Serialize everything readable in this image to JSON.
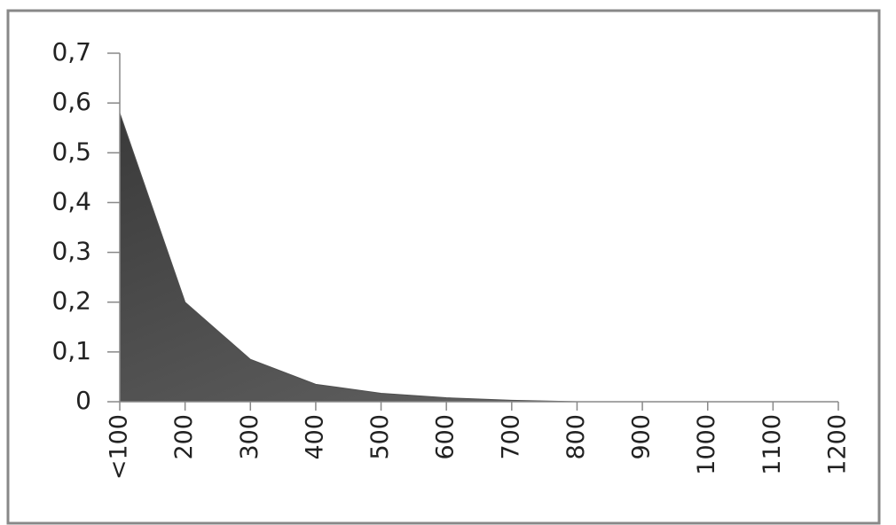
{
  "chart_data": {
    "type": "area",
    "categories": [
      "<100",
      "200",
      "300",
      "400",
      "500",
      "600",
      "700",
      "800",
      "900",
      "1000",
      "1100",
      "1200"
    ],
    "values": [
      0.58,
      0.2,
      0.085,
      0.035,
      0.017,
      0.008,
      0.003,
      0,
      0,
      0,
      0,
      0
    ],
    "color": "#505050",
    "ylim": [
      0,
      0.7
    ],
    "yticks": [
      0,
      {
        "value": 0.1,
        "label": "0,1"
      },
      {
        "value": 0.2,
        "label": "0,2"
      },
      {
        "value": 0.3,
        "label": "0,3"
      },
      {
        "value": 0.4,
        "label": "0,4"
      },
      {
        "value": 0.5,
        "label": "0,5"
      },
      {
        "value": 0.6,
        "label": "0,6"
      },
      {
        "value": 0.7,
        "label": "0,7"
      }
    ],
    "grid": false
  }
}
